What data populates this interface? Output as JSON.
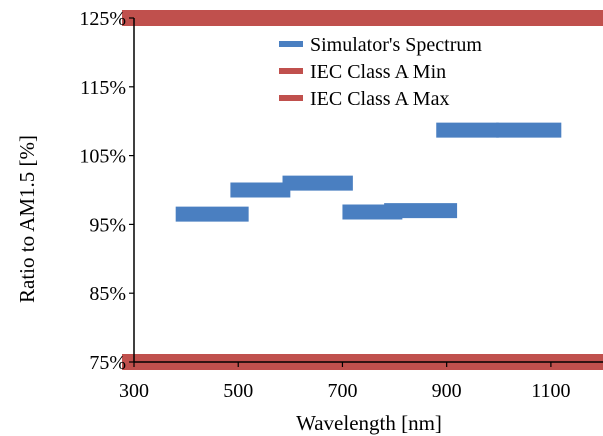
{
  "chart_data": {
    "type": "line",
    "xlabel": "Wavelength [nm]",
    "ylabel": "Ratio to AM1.5 [%]",
    "xlim": [
      300,
      1200
    ],
    "ylim": [
      75,
      125
    ],
    "x_ticks": [
      300,
      500,
      700,
      900,
      1100
    ],
    "x_tick_labels": [
      "300",
      "500",
      "700",
      "900",
      "1100"
    ],
    "y_ticks": [
      75,
      85,
      95,
      105,
      115,
      125
    ],
    "y_tick_labels": [
      "75%",
      "85%",
      "95%",
      "105%",
      "115%",
      "125%"
    ],
    "legend_position": "top-right",
    "series": [
      {
        "name": "Simulator's Spectrum",
        "color": "#4a7fc1",
        "segments": [
          {
            "x": [
              380,
              520
            ],
            "y": 96.5
          },
          {
            "x": [
              485,
              600
            ],
            "y": 100.0
          },
          {
            "x": [
              585,
              720
            ],
            "y": 101.0
          },
          {
            "x": [
              700,
              815
            ],
            "y": 96.8
          },
          {
            "x": [
              780,
              920
            ],
            "y": 97.0
          },
          {
            "x": [
              880,
              1000
            ],
            "y": 108.7
          },
          {
            "x": [
              995,
              1120
            ],
            "y": 108.7
          }
        ]
      },
      {
        "name": "IEC Class A Min",
        "color": "#c0504d",
        "segments": [
          {
            "x": [
              300,
              1200
            ],
            "y": 75
          }
        ]
      },
      {
        "name": "IEC Class A Max",
        "color": "#c0504d",
        "segments": [
          {
            "x": [
              300,
              1200
            ],
            "y": 125
          }
        ]
      }
    ]
  }
}
